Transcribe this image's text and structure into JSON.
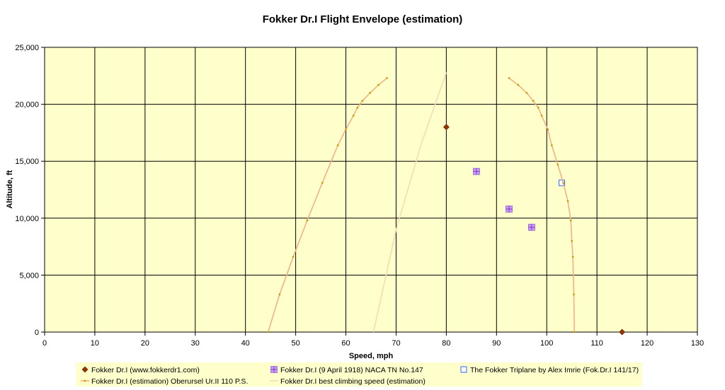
{
  "chart_data": {
    "type": "scatter",
    "title": "Fokker Dr.I Flight Envelope (estimation)",
    "xlabel": "Speed, mph",
    "ylabel": "Altitude, ft",
    "xlim": [
      0,
      130
    ],
    "ylim": [
      0,
      25000
    ],
    "x_ticks": [
      "0",
      "10",
      "20",
      "30",
      "40",
      "50",
      "60",
      "70",
      "80",
      "90",
      "100",
      "110",
      "120",
      "130"
    ],
    "y_ticks": [
      "0",
      "5,000",
      "10,000",
      "15,000",
      "20,000",
      "25,000"
    ],
    "grid": true,
    "legend_position": "bottom",
    "plot_background": "#ffffcc",
    "series": [
      {
        "name": "Fokker Dr.I (www.fokkerdr1.com)",
        "kind": "marker",
        "marker": "diamond",
        "color": "#993300",
        "points": [
          [
            80,
            18000
          ],
          [
            115,
            0
          ]
        ]
      },
      {
        "name": "Fokker Dr.I (9 April 1918) NACA TN No.147",
        "kind": "marker",
        "marker": "square-plus",
        "color": "#cc99ff",
        "points": [
          [
            86,
            14100
          ],
          [
            92.5,
            10800
          ],
          [
            97,
            9200
          ]
        ]
      },
      {
        "name": "The Fokker Triplane by Alex Imrie (Fok.Dr.I 141/17)",
        "kind": "marker",
        "marker": "square-open",
        "color": "#3366ff",
        "points": [
          [
            103,
            13100
          ]
        ]
      },
      {
        "name": "Fokker Dr.I (estimation) Oberursel Ur.II 110 P.S.",
        "kind": "line-marker",
        "color": "#f4b183",
        "marker_color": "#cc9900",
        "segments": [
          [
            [
              44.5,
              0
            ],
            [
              46.8,
              3300
            ],
            [
              49.5,
              6600
            ],
            [
              52.3,
              9800
            ],
            [
              55.3,
              13100
            ],
            [
              58.4,
              16400
            ],
            [
              60,
              17800
            ],
            [
              61.5,
              19000
            ],
            [
              62.3,
              19700
            ],
            [
              63.3,
              20300
            ],
            [
              64.8,
              21000
            ],
            [
              66.5,
              21700
            ],
            [
              68.2,
              22300
            ]
          ],
          [
            [
              92.5,
              22300
            ],
            [
              94.3,
              21700
            ],
            [
              96,
              21000
            ],
            [
              97.3,
              20300
            ],
            [
              98.3,
              19700
            ],
            [
              99,
              19000
            ],
            [
              100.2,
              17800
            ],
            [
              101,
              16400
            ],
            [
              102.2,
              14700
            ],
            [
              103.3,
              13100
            ],
            [
              104.2,
              11500
            ],
            [
              104.8,
              9800
            ],
            [
              105,
              8000
            ],
            [
              105.2,
              6600
            ],
            [
              105.4,
              3300
            ],
            [
              105.5,
              0
            ]
          ]
        ]
      },
      {
        "name": "Fokker Dr.I best climbing speed (estimation)",
        "kind": "line",
        "color": "#f2dcb5",
        "segments": [
          [
            [
              65.5,
              0
            ],
            [
              70,
              9000
            ],
            [
              75,
              16500
            ],
            [
              80,
              22800
            ]
          ]
        ]
      }
    ]
  }
}
